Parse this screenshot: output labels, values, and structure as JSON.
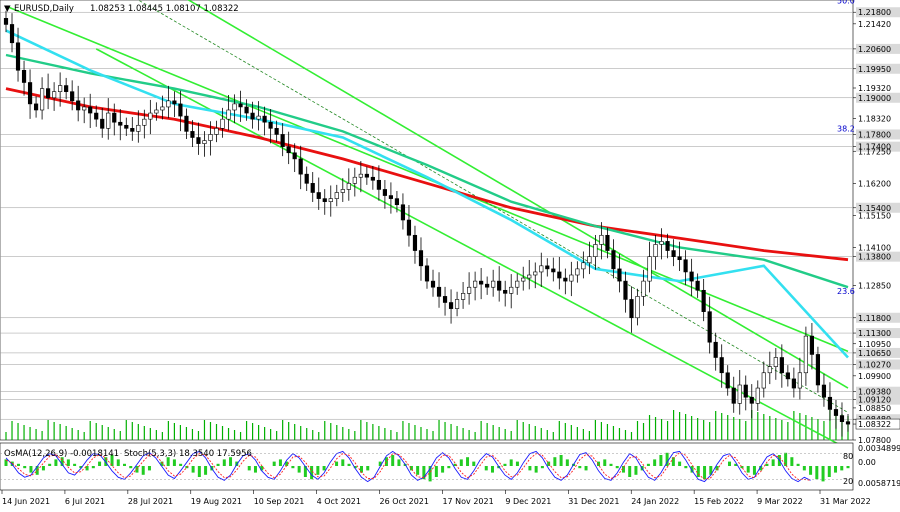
{
  "chart_data": {
    "type": "candlestick",
    "symbol_header": "EURUSD,Daily",
    "ohlc_header": "1.08253 1.08445 1.08107 1.08322",
    "ylim": [
      1.078,
      1.222
    ],
    "price_labels": [
      "1.21800",
      "1.21420",
      "1.20600",
      "1.19950",
      "1.19320",
      "1.19000",
      "1.18320",
      "1.17800",
      "1.17400",
      "1.17250",
      "1.16200",
      "1.15400",
      "1.15150",
      "1.14100",
      "1.13800",
      "1.12850",
      "1.11800",
      "1.11300",
      "1.10950",
      "1.10650",
      "1.10270",
      "1.09900",
      "1.09380",
      "1.09120",
      "1.08850",
      "1.08480",
      "1.08322",
      "1.07800"
    ],
    "highlighted_levels": [
      "1.21800",
      "1.20600",
      "1.19950",
      "1.19000",
      "1.17800",
      "1.17400",
      "1.15400",
      "1.13800",
      "1.11800",
      "1.11300",
      "1.10650",
      "1.10270",
      "1.09380",
      "1.09120",
      "1.08480"
    ],
    "current_price": "1.08322",
    "fib_labels": [
      {
        "text": "50.0",
        "price": 1.2218
      },
      {
        "text": "38.2",
        "price": 1.18
      },
      {
        "text": "23.6",
        "price": 1.1268
      }
    ],
    "x_labels": [
      "14 Jun 2021",
      "6 Jul 2021",
      "28 Jul 2021",
      "19 Aug 2021",
      "10 Sep 2021",
      "4 Oct 2021",
      "26 Oct 2021",
      "17 Nov 2021",
      "9 Dec 2021",
      "31 Dec 2021",
      "24 Jan 2022",
      "15 Feb 2022",
      "9 Mar 2022",
      "31 Mar 2022"
    ],
    "closes": [
      1.214,
      1.208,
      1.199,
      1.195,
      1.188,
      1.186,
      1.193,
      1.19,
      1.192,
      1.194,
      1.192,
      1.189,
      1.186,
      1.187,
      1.185,
      1.183,
      1.18,
      1.185,
      1.182,
      1.181,
      1.18,
      1.179,
      1.181,
      1.183,
      1.185,
      1.186,
      1.187,
      1.189,
      1.188,
      1.184,
      1.179,
      1.177,
      1.175,
      1.176,
      1.178,
      1.18,
      1.183,
      1.186,
      1.188,
      1.187,
      1.185,
      1.183,
      1.184,
      1.182,
      1.18,
      1.178,
      1.174,
      1.172,
      1.17,
      1.165,
      1.162,
      1.159,
      1.157,
      1.156,
      1.157,
      1.159,
      1.16,
      1.162,
      1.164,
      1.165,
      1.164,
      1.163,
      1.16,
      1.158,
      1.157,
      1.155,
      1.15,
      1.145,
      1.14,
      1.135,
      1.13,
      1.128,
      1.125,
      1.123,
      1.121,
      1.124,
      1.126,
      1.128,
      1.13,
      1.129,
      1.128,
      1.13,
      1.127,
      1.126,
      1.128,
      1.13,
      1.131,
      1.132,
      1.133,
      1.135,
      1.134,
      1.133,
      1.131,
      1.13,
      1.132,
      1.134,
      1.136,
      1.138,
      1.142,
      1.145,
      1.14,
      1.134,
      1.13,
      1.124,
      1.118,
      1.125,
      1.13,
      1.138,
      1.142,
      1.143,
      1.14,
      1.138,
      1.137,
      1.133,
      1.13,
      1.127,
      1.12,
      1.11,
      1.105,
      1.1,
      1.095,
      1.09,
      1.096,
      1.092,
      1.09,
      1.095,
      1.1,
      1.102,
      1.105,
      1.1,
      1.098,
      1.095,
      1.1,
      1.112,
      1.106,
      1.096,
      1.092,
      1.088,
      1.086,
      1.084,
      1.0832
    ],
    "ma_slow": [
      1.193,
      1.187,
      1.183,
      1.177,
      1.17,
      1.162,
      1.154,
      1.148,
      1.144,
      1.14,
      1.137
    ],
    "ma_mid": [
      1.204,
      1.198,
      1.193,
      1.187,
      1.179,
      1.168,
      1.156,
      1.148,
      1.141,
      1.137,
      1.128
    ],
    "ma_fast": [
      1.212,
      1.199,
      1.188,
      1.183,
      1.177,
      1.164,
      1.15,
      1.134,
      1.13,
      1.135,
      1.105
    ],
    "channel_lines": [
      {
        "name": "outer-channel-line",
        "p1": [
          20,
          1.234
        ],
        "p2": [
          140,
          1.095
        ]
      },
      {
        "name": "inner-channel-line",
        "p1": [
          0,
          1.22
        ],
        "p2": [
          140,
          1.107
        ]
      },
      {
        "name": "mid-dashed-line",
        "p1": [
          15,
          1.23
        ],
        "p2": [
          140,
          1.087
        ]
      },
      {
        "name": "lower-channel-line",
        "p1": [
          15,
          1.206
        ],
        "p2": [
          140,
          1.075
        ]
      }
    ],
    "osma_header": "OsMA(12,26,9) -0.0018141",
    "stoch_header": "Stoch(5,3,3) 18.3540 17.5956",
    "osma_axis_labels": [
      "0.0034899",
      "0.00",
      "0.0058719"
    ],
    "stoch_axis_labels": [
      "80",
      "20"
    ],
    "osma": [
      3,
      2,
      1,
      -1,
      -3,
      -4,
      -2,
      1,
      3,
      4,
      3,
      1,
      -1,
      -2,
      -1,
      2,
      4,
      5,
      3,
      1,
      -1,
      -3,
      -4,
      -2,
      0,
      2,
      4,
      3,
      1,
      -1,
      -3,
      -5,
      -4,
      -2,
      1,
      3,
      4,
      2,
      0,
      -2,
      -3,
      -2,
      0,
      2,
      3,
      2,
      -1,
      -3,
      -5,
      -6,
      -4,
      -2,
      0,
      2,
      3,
      1,
      -1,
      -3,
      -2,
      0,
      2,
      4,
      5,
      3,
      1,
      -2,
      -4,
      -6,
      -7,
      -5,
      -3,
      -1,
      1,
      3,
      4,
      2,
      0,
      -2,
      -3,
      -1,
      1,
      3,
      2,
      0,
      -2,
      -3,
      -1,
      2,
      4,
      5,
      3,
      1,
      -1,
      -2,
      0,
      2,
      3,
      1,
      -1,
      -3,
      -5,
      -4,
      -2,
      1,
      3,
      5,
      6,
      4,
      2,
      -1,
      -3,
      -5,
      -6,
      -4,
      -2,
      0,
      2,
      1,
      -1,
      -3,
      -4,
      -2,
      1,
      3,
      5,
      6,
      4,
      1,
      -2,
      -4,
      -6,
      -7,
      -5,
      -3,
      -2,
      -1
    ],
    "stoch_main": [
      70,
      55,
      35,
      25,
      30,
      50,
      70,
      80,
      75,
      55,
      35,
      30,
      45,
      65,
      80,
      78,
      60,
      40,
      25,
      20,
      35,
      55,
      75,
      82,
      70,
      50,
      30,
      22,
      40,
      60,
      80,
      85,
      70,
      45,
      25,
      18,
      30,
      55,
      75,
      80,
      65,
      40,
      25,
      20,
      40,
      65,
      80,
      70,
      50,
      30,
      20,
      35,
      60,
      80,
      85,
      70,
      45,
      25,
      15,
      25,
      50,
      75,
      85,
      75,
      55,
      30,
      18,
      25,
      45,
      70,
      82,
      70,
      45,
      25,
      20,
      40,
      65,
      80,
      72,
      50,
      30,
      20,
      35,
      60,
      80,
      85,
      70,
      45,
      25,
      18,
      30,
      55,
      78,
      82,
      65,
      40,
      22,
      18,
      35,
      60,
      80,
      70,
      45,
      25,
      18,
      35,
      60,
      82,
      85,
      65,
      40,
      20,
      15,
      30,
      55,
      75,
      80,
      60,
      35,
      20,
      25,
      50,
      72,
      80,
      65,
      40,
      22,
      15,
      25,
      18
    ],
    "stoch_signal": [
      65,
      58,
      45,
      32,
      28,
      40,
      58,
      74,
      77,
      66,
      48,
      35,
      38,
      52,
      70,
      78,
      70,
      52,
      35,
      24,
      28,
      45,
      62,
      78,
      76,
      60,
      40,
      28,
      32,
      48,
      68,
      80,
      76,
      58,
      38,
      24,
      26,
      42,
      62,
      76,
      72,
      52,
      34,
      24,
      32,
      52,
      72,
      74,
      60,
      40,
      26,
      28,
      46,
      68,
      80,
      76,
      58,
      36,
      22,
      22,
      38,
      62,
      80,
      78,
      64,
      44,
      26,
      24,
      36,
      58,
      76,
      76,
      58,
      36,
      24,
      32,
      52,
      72,
      76,
      62,
      40,
      26,
      30,
      48,
      68,
      80,
      76,
      58,
      38,
      24,
      26,
      42,
      66,
      78,
      74,
      54,
      32,
      22,
      28,
      48,
      70,
      74,
      58,
      36,
      24,
      28,
      48,
      70,
      82,
      76,
      54,
      32,
      20,
      24,
      42,
      64,
      76,
      70,
      48,
      28,
      24,
      38,
      60,
      76,
      72,
      54,
      32,
      20,
      20,
      18
    ]
  }
}
